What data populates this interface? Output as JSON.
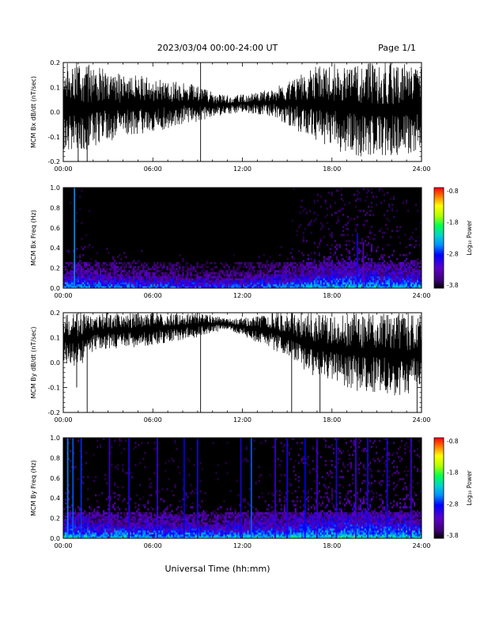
{
  "header": {
    "date_range": "2023/03/04  00:00-24:00 UT",
    "page": "Page 1/1"
  },
  "x_axis": {
    "label": "Universal Time (hh:mm)",
    "tick_labels": [
      "00:00",
      "06:00",
      "12:00",
      "18:00",
      "24:00"
    ]
  },
  "colorbar_labels": {
    "title": "Log₁₀ Power",
    "ticks": [
      "-0.8",
      "-1.8",
      "-2.8",
      "-3.8"
    ]
  },
  "chart_data": [
    {
      "type": "line",
      "ylabel": "MCM Bx dB/dt (nT/sec)",
      "xlim": [
        0,
        24
      ],
      "ylim": [
        -0.2,
        0.2
      ],
      "yticks": [
        "-0.2",
        "-0.1",
        "0.0",
        "0.1",
        "0.2"
      ],
      "color": "#000000",
      "envelope": {
        "hours": [
          0,
          1,
          2,
          3,
          4,
          5,
          6,
          7,
          8,
          9,
          10,
          11,
          12,
          13,
          14,
          15,
          16,
          17,
          18,
          19,
          20,
          21,
          22,
          23,
          24
        ],
        "max": [
          0.2,
          0.2,
          0.19,
          0.17,
          0.15,
          0.15,
          0.14,
          0.13,
          0.12,
          0.11,
          0.08,
          0.07,
          0.07,
          0.08,
          0.1,
          0.12,
          0.16,
          0.19,
          0.2,
          0.2,
          0.2,
          0.2,
          0.2,
          0.2,
          0.2
        ],
        "min": [
          -0.15,
          -0.16,
          -0.15,
          -0.12,
          -0.1,
          -0.09,
          -0.08,
          -0.07,
          -0.05,
          -0.04,
          -0.02,
          -0.01,
          0.0,
          -0.01,
          -0.02,
          -0.05,
          -0.09,
          -0.12,
          -0.15,
          -0.17,
          -0.18,
          -0.18,
          -0.18,
          -0.17,
          -0.16
        ]
      },
      "spikes": [
        {
          "hour": 1.0,
          "value": -0.2
        },
        {
          "hour": 1.6,
          "value": -0.2
        },
        {
          "hour": 9.2,
          "value": -0.2
        },
        {
          "hour": 9.2,
          "value": 0.2
        }
      ]
    },
    {
      "type": "heatmap",
      "ylabel": "MCM Bx Freq (Hz)",
      "xlim": [
        0,
        24
      ],
      "ylim": [
        0.0,
        1.0
      ],
      "yticks": [
        "0.0",
        "0.2",
        "0.4",
        "0.6",
        "0.8",
        "1.0"
      ],
      "zlabel": "Log₁₀ Power",
      "zlim": [
        -3.8,
        -0.8
      ],
      "background_level": -3.8,
      "colormap": [
        "#000000",
        "#3d0075",
        "#5b00c8",
        "#0000ff",
        "#0090ff",
        "#00d0d0",
        "#00ff50",
        "#b0ff00",
        "#ffff00",
        "#ff8000",
        "#ff0000"
      ],
      "lowfreq_profile": {
        "freq_hz": [
          0.0,
          0.04,
          0.08,
          0.15,
          0.3,
          0.5
        ],
        "log_power": [
          -2.3,
          -2.6,
          -2.9,
          -3.2,
          -3.5,
          -3.8
        ]
      },
      "activity_by_hour": [
        0.6,
        0.8,
        0.6,
        0.6,
        0.5,
        0.5,
        0.4,
        0.4,
        0.35,
        0.3,
        0.25,
        0.3,
        0.35,
        0.45,
        0.55,
        0.65,
        0.8,
        0.9,
        0.95,
        1.0,
        1.0,
        0.95,
        0.9,
        0.85,
        0.8
      ],
      "vertical_streaks": [
        {
          "hour": 0.75,
          "log_power": -2.6,
          "fmax_hz": 1.0
        },
        {
          "hour": 19.7,
          "log_power": -3.0,
          "fmax_hz": 0.55
        },
        {
          "hour": 20.1,
          "log_power": -3.2,
          "fmax_hz": 0.45
        }
      ]
    },
    {
      "type": "line",
      "ylabel": "MCM By dB/dt (nT/sec)",
      "xlim": [
        0,
        24
      ],
      "ylim": [
        -0.2,
        0.2
      ],
      "yticks": [
        "-0.2",
        "-0.1",
        "0.0",
        "0.1",
        "0.2"
      ],
      "color": "#000000",
      "envelope": {
        "hours": [
          0,
          1,
          2,
          3,
          4,
          5,
          6,
          7,
          8,
          9,
          10,
          11,
          12,
          13,
          14,
          15,
          16,
          17,
          18,
          19,
          20,
          21,
          22,
          23,
          24
        ],
        "max": [
          0.2,
          0.2,
          0.2,
          0.2,
          0.2,
          0.2,
          0.2,
          0.2,
          0.2,
          0.2,
          0.19,
          0.18,
          0.18,
          0.19,
          0.2,
          0.2,
          0.2,
          0.2,
          0.2,
          0.2,
          0.2,
          0.2,
          0.2,
          0.2,
          0.2
        ],
        "min": [
          0.0,
          -0.02,
          0.04,
          0.05,
          0.06,
          0.06,
          0.07,
          0.08,
          0.09,
          0.1,
          0.12,
          0.13,
          0.11,
          0.08,
          0.05,
          0.02,
          -0.03,
          -0.06,
          -0.08,
          -0.1,
          -0.12,
          -0.12,
          -0.13,
          -0.14,
          -0.12
        ]
      },
      "spikes": [
        {
          "hour": 0.9,
          "value": -0.1
        },
        {
          "hour": 1.6,
          "value": -0.2
        },
        {
          "hour": 9.2,
          "value": -0.2
        },
        {
          "hour": 15.3,
          "value": -0.2
        },
        {
          "hour": 17.2,
          "value": -0.2
        },
        {
          "hour": 23.7,
          "value": -0.2
        }
      ]
    },
    {
      "type": "heatmap",
      "ylabel": "MCM By Freq (Hz)",
      "xlim": [
        0,
        24
      ],
      "ylim": [
        0.0,
        1.0
      ],
      "yticks": [
        "0.0",
        "0.2",
        "0.4",
        "0.6",
        "0.8",
        "1.0"
      ],
      "zlabel": "Log₁₀ Power",
      "zlim": [
        -3.8,
        -0.8
      ],
      "background_level": -3.8,
      "colormap": [
        "#000000",
        "#3d0075",
        "#5b00c8",
        "#0000ff",
        "#0090ff",
        "#00d0d0",
        "#00ff50",
        "#b0ff00",
        "#ffff00",
        "#ff8000",
        "#ff0000"
      ],
      "lowfreq_profile": {
        "freq_hz": [
          0.0,
          0.04,
          0.08,
          0.15,
          0.3,
          0.5
        ],
        "log_power": [
          -2.1,
          -2.5,
          -2.8,
          -3.1,
          -3.4,
          -3.7
        ]
      },
      "activity_by_hour": [
        0.8,
        0.8,
        0.7,
        0.7,
        0.7,
        0.7,
        0.65,
        0.65,
        0.6,
        0.6,
        0.55,
        0.6,
        0.65,
        0.7,
        0.75,
        0.8,
        0.85,
        0.9,
        0.95,
        1.0,
        1.0,
        0.95,
        0.9,
        0.9,
        0.85
      ],
      "vertical_streaks": [
        {
          "hour": 0.3,
          "log_power": -2.6,
          "fmax_hz": 1.0
        },
        {
          "hour": 0.65,
          "log_power": -2.7,
          "fmax_hz": 1.0
        },
        {
          "hour": 1.2,
          "log_power": -2.8,
          "fmax_hz": 1.0
        },
        {
          "hour": 3.1,
          "log_power": -3.1,
          "fmax_hz": 1.0
        },
        {
          "hour": 4.4,
          "log_power": -3.0,
          "fmax_hz": 1.0
        },
        {
          "hour": 6.3,
          "log_power": -3.1,
          "fmax_hz": 1.0
        },
        {
          "hour": 8.1,
          "log_power": -2.9,
          "fmax_hz": 1.0
        },
        {
          "hour": 9.0,
          "log_power": -3.0,
          "fmax_hz": 1.0
        },
        {
          "hour": 11.9,
          "log_power": -3.0,
          "fmax_hz": 1.0
        },
        {
          "hour": 12.6,
          "log_power": -2.7,
          "fmax_hz": 1.0
        },
        {
          "hour": 14.2,
          "log_power": -3.1,
          "fmax_hz": 1.0
        },
        {
          "hour": 15.0,
          "log_power": -3.0,
          "fmax_hz": 1.0
        },
        {
          "hour": 16.2,
          "log_power": -2.9,
          "fmax_hz": 1.0
        },
        {
          "hour": 17.0,
          "log_power": -3.1,
          "fmax_hz": 1.0
        },
        {
          "hour": 18.3,
          "log_power": -3.0,
          "fmax_hz": 1.0
        },
        {
          "hour": 19.6,
          "log_power": -3.1,
          "fmax_hz": 1.0
        },
        {
          "hour": 20.4,
          "log_power": -3.0,
          "fmax_hz": 1.0
        },
        {
          "hour": 21.7,
          "log_power": -3.0,
          "fmax_hz": 1.0
        },
        {
          "hour": 23.3,
          "log_power": -3.1,
          "fmax_hz": 1.0
        }
      ]
    }
  ]
}
